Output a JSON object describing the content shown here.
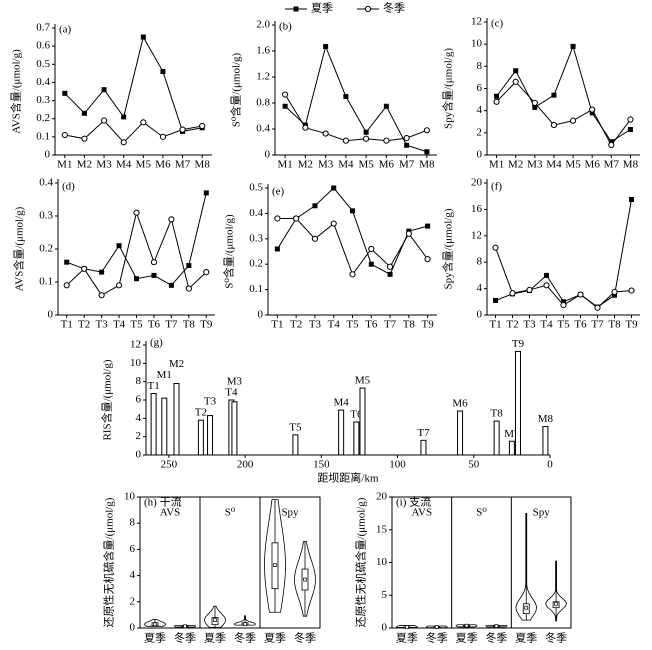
{
  "legend": [
    {
      "name": "夏季",
      "marker": "square",
      "color": "#000000"
    },
    {
      "name": "冬季",
      "marker": "circle",
      "color": "#000000"
    }
  ],
  "chart_data": [
    {
      "type": "line",
      "panel": "(a)",
      "ylabel": "AVS含量/(μmol/g)",
      "categories": [
        "M1",
        "M2",
        "M3",
        "M4",
        "M5",
        "M6",
        "M7",
        "M8"
      ],
      "series": [
        {
          "marker": "square",
          "color": "#000000",
          "values": [
            0.34,
            0.23,
            0.36,
            0.21,
            0.65,
            0.46,
            0.13,
            0.15
          ]
        },
        {
          "marker": "circle",
          "color": "#000000",
          "values": [
            0.11,
            0.09,
            0.19,
            0.07,
            0.18,
            0.1,
            0.14,
            0.16
          ]
        }
      ],
      "ylim": [
        0,
        0.7
      ],
      "yticks": [
        0,
        0.1,
        0.2,
        0.3,
        0.4,
        0.5,
        0.6,
        0.7
      ]
    },
    {
      "type": "line",
      "panel": "(b)",
      "ylabel": "S⁰含量/(μmol/g)",
      "categories": [
        "M1",
        "M2",
        "M3",
        "M4",
        "M5",
        "M6",
        "M7",
        "M8"
      ],
      "series": [
        {
          "marker": "square",
          "color": "#000000",
          "values": [
            0.75,
            0.46,
            1.67,
            0.9,
            0.35,
            0.75,
            0.15,
            0.05
          ]
        },
        {
          "marker": "circle",
          "color": "#000000",
          "values": [
            0.93,
            0.42,
            0.33,
            0.22,
            0.25,
            0.22,
            0.26,
            0.38
          ]
        }
      ],
      "ylim": [
        0,
        2
      ],
      "yticks": [
        0,
        0.4,
        0.8,
        1.2,
        1.6,
        {
          "value": 2,
          "label": "2.0"
        }
      ]
    },
    {
      "type": "line",
      "panel": "(c)",
      "ylabel": "Spy含量/(μmol/g)",
      "categories": [
        "M1",
        "M2",
        "M3",
        "M4",
        "M5",
        "M6",
        "M7",
        "M8"
      ],
      "series": [
        {
          "marker": "square",
          "color": "#000000",
          "values": [
            5.3,
            7.6,
            4.3,
            5.4,
            9.8,
            3.8,
            1.2,
            2.3
          ]
        },
        {
          "marker": "circle",
          "color": "#000000",
          "values": [
            4.8,
            6.6,
            4.7,
            2.7,
            3.1,
            4.1,
            0.9,
            3.2
          ]
        }
      ],
      "ylim": [
        0,
        12
      ],
      "yticks": [
        0,
        2,
        4,
        6,
        8,
        10,
        12
      ]
    },
    {
      "type": "line",
      "panel": "(d)",
      "ylabel": "AVS含量/(μmol/g)",
      "categories": [
        "T1",
        "T2",
        "T3",
        "T4",
        "T5",
        "T6",
        "T7",
        "T8",
        "T9"
      ],
      "series": [
        {
          "marker": "square",
          "color": "#000000",
          "values": [
            0.16,
            0.14,
            0.13,
            0.21,
            0.11,
            0.12,
            0.09,
            0.15,
            0.37
          ]
        },
        {
          "marker": "circle",
          "color": "#000000",
          "values": [
            0.09,
            0.14,
            0.06,
            0.09,
            0.31,
            0.16,
            0.29,
            0.08,
            0.13
          ]
        }
      ],
      "ylim": [
        0,
        0.4
      ],
      "yticks": [
        0,
        0.1,
        0.2,
        0.3,
        0.4
      ]
    },
    {
      "type": "line",
      "panel": "(e)",
      "ylabel": "S⁰含量/(μmol/g)",
      "categories": [
        "T1",
        "T2",
        "T3",
        "T4",
        "T5",
        "T6",
        "T7",
        "T8",
        "T9"
      ],
      "series": [
        {
          "marker": "square",
          "color": "#000000",
          "values": [
            0.26,
            0.38,
            0.43,
            0.5,
            0.41,
            0.2,
            0.16,
            0.33,
            0.35
          ]
        },
        {
          "marker": "circle",
          "color": "#000000",
          "values": [
            0.38,
            0.38,
            0.3,
            0.36,
            0.16,
            0.26,
            0.19,
            0.32,
            0.22
          ]
        }
      ],
      "ylim": [
        0,
        0.5
      ],
      "yticks": [
        0,
        0.1,
        0.2,
        0.3,
        0.4,
        0.5
      ]
    },
    {
      "type": "line",
      "panel": "(f)",
      "ylabel": "Spy含量/(μmol/g)",
      "categories": [
        "T1",
        "T2",
        "T3",
        "T4",
        "T5",
        "T6",
        "T7",
        "T8",
        "T9"
      ],
      "series": [
        {
          "marker": "square",
          "color": "#000000",
          "values": [
            2.2,
            3.2,
            3.7,
            6.0,
            2.0,
            3.1,
            1.2,
            3.0,
            17.5
          ]
        },
        {
          "marker": "circle",
          "color": "#000000",
          "values": [
            10.2,
            3.3,
            3.8,
            4.5,
            1.5,
            3.1,
            1.1,
            3.5,
            3.7
          ]
        }
      ],
      "ylim": [
        0,
        20
      ],
      "yticks": [
        0,
        4,
        8,
        12,
        16,
        20
      ]
    },
    {
      "type": "bar",
      "panel": "(g)",
      "ylabel": "RIS含量/(μmol/g)",
      "xlabel": "距坝距离/km",
      "color": "#ffffff",
      "labels": [
        "T1",
        "M1",
        "M2",
        "T2",
        "T3",
        "T4",
        "M3",
        "T5",
        "M4",
        "T6",
        "M5",
        "T7",
        "M6",
        "T8",
        "M7",
        "T9",
        "M8"
      ],
      "x": [
        260,
        253,
        245,
        229,
        223,
        209,
        207,
        167,
        137,
        127,
        123,
        83,
        59,
        35,
        25,
        21,
        3
      ],
      "values": [
        6.7,
        6.2,
        7.8,
        3.8,
        4.3,
        6.0,
        5.8,
        2.2,
        4.9,
        3.6,
        7.3,
        1.6,
        4.8,
        3.7,
        1.5,
        11.3,
        3.1
      ],
      "xlim": [
        265,
        0
      ],
      "xticks": [
        250,
        200,
        150,
        100,
        50,
        0
      ],
      "ylim": [
        0,
        12
      ],
      "yticks": [
        0,
        2,
        4,
        6,
        8,
        10,
        12
      ]
    },
    {
      "type": "violin",
      "panel": "(h) 干流",
      "ylabel": "还原性无机硫含量/(μmol/g)",
      "season_labels": [
        "夏季",
        "冬季"
      ],
      "groups": [
        {
          "name": "AVS",
          "boxes": [
            {
              "min": 0.13,
              "q1": 0.17,
              "median": 0.28,
              "q3": 0.4,
              "max": 0.65
            },
            {
              "min": 0.07,
              "q1": 0.1,
              "median": 0.13,
              "q3": 0.17,
              "max": 0.19
            }
          ]
        },
        {
          "name": "S⁰",
          "boxes": [
            {
              "min": 0.05,
              "q1": 0.25,
              "median": 0.6,
              "q3": 0.8,
              "max": 1.67
            },
            {
              "min": 0.22,
              "q1": 0.23,
              "median": 0.29,
              "q3": 0.4,
              "max": 0.93
            }
          ]
        },
        {
          "name": "Spy",
          "boxes": [
            {
              "min": 1.2,
              "q1": 3.0,
              "median": 4.8,
              "q3": 6.5,
              "max": 9.8
            },
            {
              "min": 0.9,
              "q1": 2.9,
              "median": 3.7,
              "q3": 4.5,
              "max": 6.6
            }
          ]
        }
      ],
      "ylim": [
        0,
        10
      ],
      "yticks": [
        0,
        2,
        4,
        6,
        8,
        10
      ]
    },
    {
      "type": "violin",
      "panel": "(i) 支流",
      "ylabel": "还原性无机硫含量/(μmol/g)",
      "season_labels": [
        "夏季",
        "冬季"
      ],
      "groups": [
        {
          "name": "AVS",
          "boxes": [
            {
              "min": 0.09,
              "q1": 0.12,
              "median": 0.14,
              "q3": 0.16,
              "max": 0.37
            },
            {
              "min": 0.06,
              "q1": 0.09,
              "median": 0.13,
              "q3": 0.16,
              "max": 0.31
            }
          ]
        },
        {
          "name": "S⁰",
          "boxes": [
            {
              "min": 0.16,
              "q1": 0.26,
              "median": 0.35,
              "q3": 0.41,
              "max": 0.5
            },
            {
              "min": 0.16,
              "q1": 0.22,
              "median": 0.3,
              "q3": 0.36,
              "max": 0.38
            }
          ]
        },
        {
          "name": "Spy",
          "boxes": [
            {
              "min": 1.2,
              "q1": 2.2,
              "median": 3.1,
              "q3": 3.7,
              "max": 17.5
            },
            {
              "min": 1.1,
              "q1": 3.1,
              "median": 3.7,
              "q3": 4.0,
              "max": 10.2
            }
          ]
        }
      ],
      "ylim": [
        0,
        20
      ],
      "yticks": [
        0,
        5,
        10,
        15,
        20
      ]
    }
  ]
}
